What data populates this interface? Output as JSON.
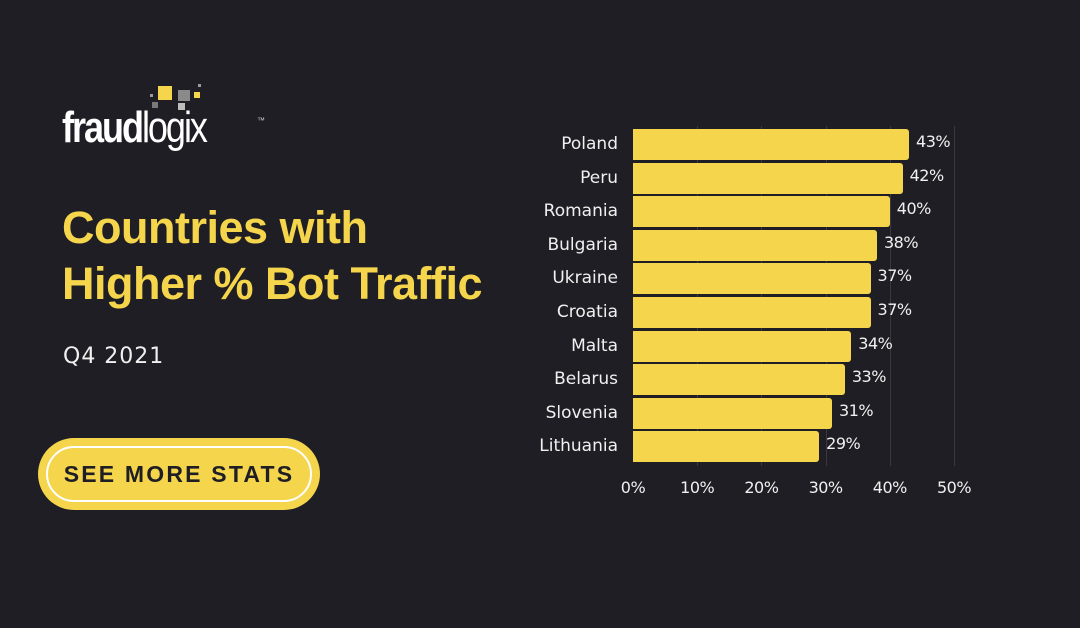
{
  "brand": {
    "name_bold": "fraud",
    "name_light": "logix",
    "trademark": "™",
    "colors": {
      "background": "#1f1e24",
      "accent": "#f5d54c",
      "text": "#f0f0f0",
      "grid": "#3a3940",
      "logo_gray": "#8a8a8a",
      "logo_light_gray": "#bdbdbd"
    }
  },
  "headline": {
    "line1": "Countries with",
    "line2": "Higher % Bot Traffic"
  },
  "period": "Q4 2021",
  "cta": {
    "label": "SEE MORE STATS"
  },
  "chart_data": {
    "type": "bar",
    "orientation": "horizontal",
    "title": "Countries with Higher % Bot Traffic",
    "subtitle": "Q4 2021",
    "categories": [
      "Poland",
      "Peru",
      "Romania",
      "Bulgaria",
      "Ukraine",
      "Croatia",
      "Malta",
      "Belarus",
      "Slovenia",
      "Lithuania"
    ],
    "values": [
      43,
      42,
      40,
      38,
      37,
      37,
      34,
      33,
      31,
      29
    ],
    "value_labels": [
      "43%",
      "42%",
      "40%",
      "38%",
      "37%",
      "37%",
      "34%",
      "33%",
      "31%",
      "29%"
    ],
    "xlabel": "",
    "ylabel": "",
    "xlim": [
      0,
      50
    ],
    "x_ticks": [
      "0%",
      "10%",
      "20%",
      "30%",
      "40%",
      "50%"
    ],
    "x_tick_values": [
      0,
      10,
      20,
      30,
      40,
      50
    ],
    "grid": true,
    "legend": "none",
    "bar_color": "#f5d54c"
  }
}
